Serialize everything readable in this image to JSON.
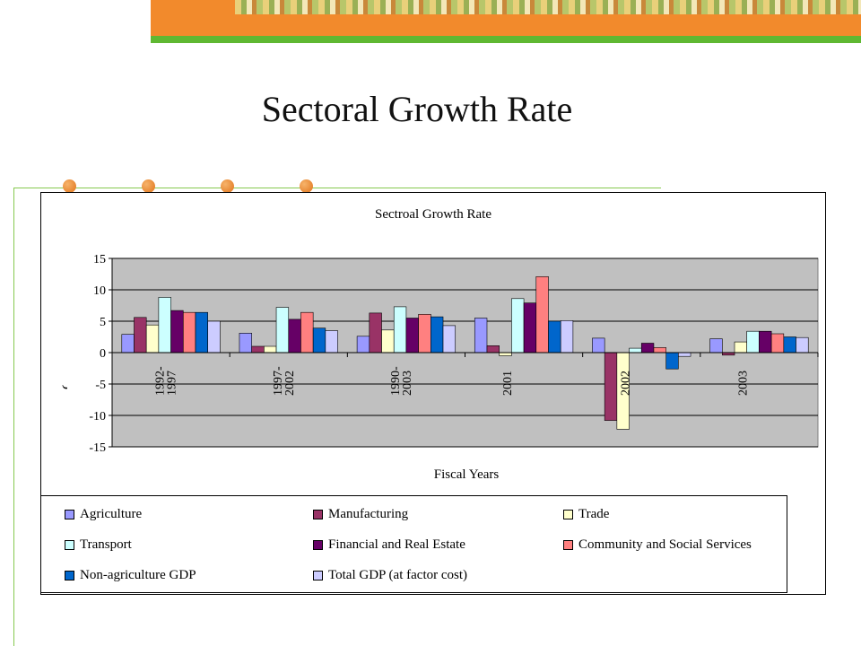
{
  "slide": {
    "title": "Sectoral Growth Rate"
  },
  "chart_data": {
    "type": "bar",
    "title": "Sectroal Growth Rate",
    "xlabel": "Fiscal Years",
    "ylabel": "Growth Rate",
    "ylim": [
      -15,
      15
    ],
    "yticks": [
      "15",
      "10",
      "5",
      "0",
      "-5",
      "-10",
      "-15"
    ],
    "grid": true,
    "legend_position": "bottom",
    "categories": [
      "1992-1997",
      "1997-2002",
      "1990-2003",
      "2001",
      "2002",
      "2003"
    ],
    "category_labels": [
      [
        "1992-",
        "1997"
      ],
      [
        "1997-",
        "2002"
      ],
      [
        "1990-",
        "2003"
      ],
      [
        "2001"
      ],
      [
        "2002"
      ],
      [
        "2003"
      ]
    ],
    "series": [
      {
        "name": "Agriculture",
        "color": "#9999ff",
        "values": [
          2.9,
          3.1,
          2.6,
          5.5,
          2.3,
          2.2
        ]
      },
      {
        "name": "Manufacturing",
        "color": "#993366",
        "values": [
          5.6,
          1.0,
          6.3,
          1.1,
          -10.8,
          -0.4
        ]
      },
      {
        "name": "Trade",
        "color": "#ffffcc",
        "values": [
          4.4,
          1.0,
          3.6,
          -0.5,
          -12.2,
          1.7
        ]
      },
      {
        "name": "Transport",
        "color": "#ccffff",
        "values": [
          8.8,
          7.2,
          7.3,
          8.6,
          0.7,
          3.4
        ]
      },
      {
        "name": "Financial and Real Estate",
        "color": "#660066",
        "values": [
          6.7,
          5.3,
          5.5,
          7.9,
          1.5,
          3.4
        ]
      },
      {
        "name": "Community and Social Services",
        "color": "#ff8080",
        "values": [
          6.4,
          6.4,
          6.1,
          12.1,
          0.8,
          3.0
        ]
      },
      {
        "name": "Non-agriculture GDP",
        "color": "#0066cc",
        "values": [
          6.4,
          3.9,
          5.7,
          5.0,
          -2.6,
          2.5
        ]
      },
      {
        "name": "Total GDP (at factor cost)",
        "color": "#ccccff",
        "values": [
          5.0,
          3.5,
          4.3,
          5.1,
          -0.6,
          2.4
        ]
      }
    ]
  }
}
